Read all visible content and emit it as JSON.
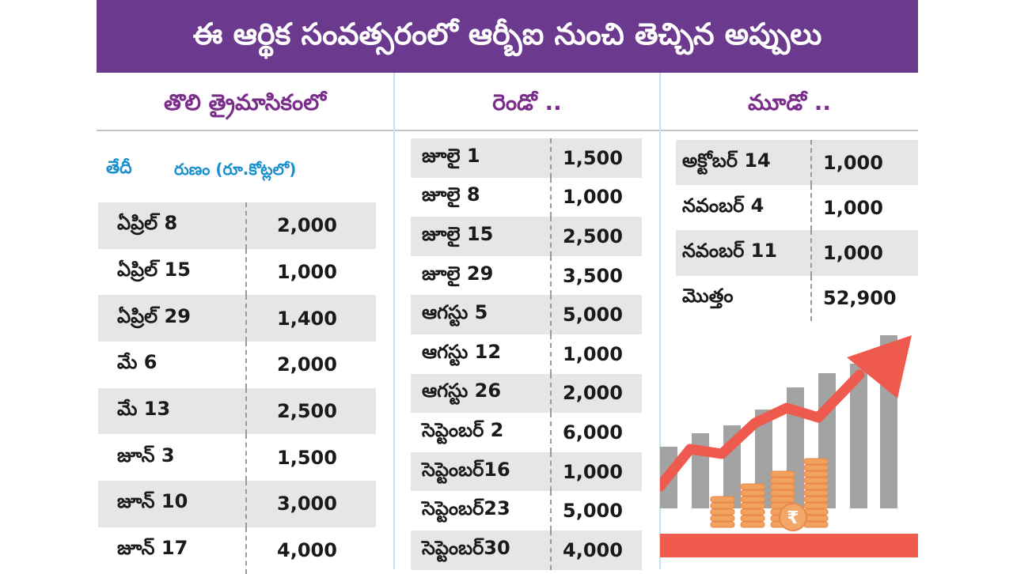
{
  "title": "ఈ ఆర్థిక సంవత్సరంలో ఆర్బీఐ నుంచి తెచ్చిన అప్పులు",
  "columns": {
    "q1": {
      "heading": "తొలి త్రైమాసికంలో",
      "date_header": "తేదీ",
      "amount_header": "రుణం (రూ.కోట్లలో)",
      "rows": [
        {
          "date": "ఏప్రిల్ 8",
          "amount": "2,000"
        },
        {
          "date": "ఏప్రిల్ 15",
          "amount": "1,000"
        },
        {
          "date": "ఏప్రిల్ 29",
          "amount": "1,400"
        },
        {
          "date": "మే 6",
          "amount": "2,000"
        },
        {
          "date": "మే 13",
          "amount": "2,500"
        },
        {
          "date": "జూన్ 3",
          "amount": "1,500"
        },
        {
          "date": "జూన్ 10",
          "amount": "3,000"
        },
        {
          "date": "జూన్ 17",
          "amount": "4,000"
        }
      ]
    },
    "q2": {
      "heading": "రెండో ..",
      "rows": [
        {
          "date": "జూలై 1",
          "amount": "1,500"
        },
        {
          "date": "జూలై 8",
          "amount": "1,000"
        },
        {
          "date": "జూలై 15",
          "amount": "2,500"
        },
        {
          "date": "జూలై 29",
          "amount": "3,500"
        },
        {
          "date": "ఆగస్టు 5",
          "amount": "5,000"
        },
        {
          "date": "ఆగస్టు 12",
          "amount": "1,000"
        },
        {
          "date": "ఆగస్టు 26",
          "amount": "2,000"
        },
        {
          "date": "సెప్టెంబర్ 2",
          "amount": "6,000"
        },
        {
          "date": "సెప్టెంబర్16",
          "amount": "1,000"
        },
        {
          "date": "సెప్టెంబర్23",
          "amount": "5,000"
        },
        {
          "date": "సెప్టెంబర్30",
          "amount": "4,000"
        }
      ]
    },
    "q3": {
      "heading": "మూడో ..",
      "rows": [
        {
          "date": "అక్టోబర్ 14",
          "amount": "1,000"
        },
        {
          "date": "నవంబర్ 4",
          "amount": "1,000"
        },
        {
          "date": "నవంబర్ 11",
          "amount": "1,000"
        },
        {
          "date": "మొత్తం",
          "amount": "52,900"
        }
      ]
    }
  },
  "colors": {
    "banner": "#6b3a8e",
    "heading": "#7a2e8a",
    "subheader": "#1a8fd0",
    "row_shade": "#e6e6e6",
    "arrow": "#ef5a4e",
    "coins": "#f2a15f",
    "bars": "#9e9e9e"
  },
  "illustration": {
    "icon": "growth-chart-icon",
    "coin_symbol": "₹"
  }
}
